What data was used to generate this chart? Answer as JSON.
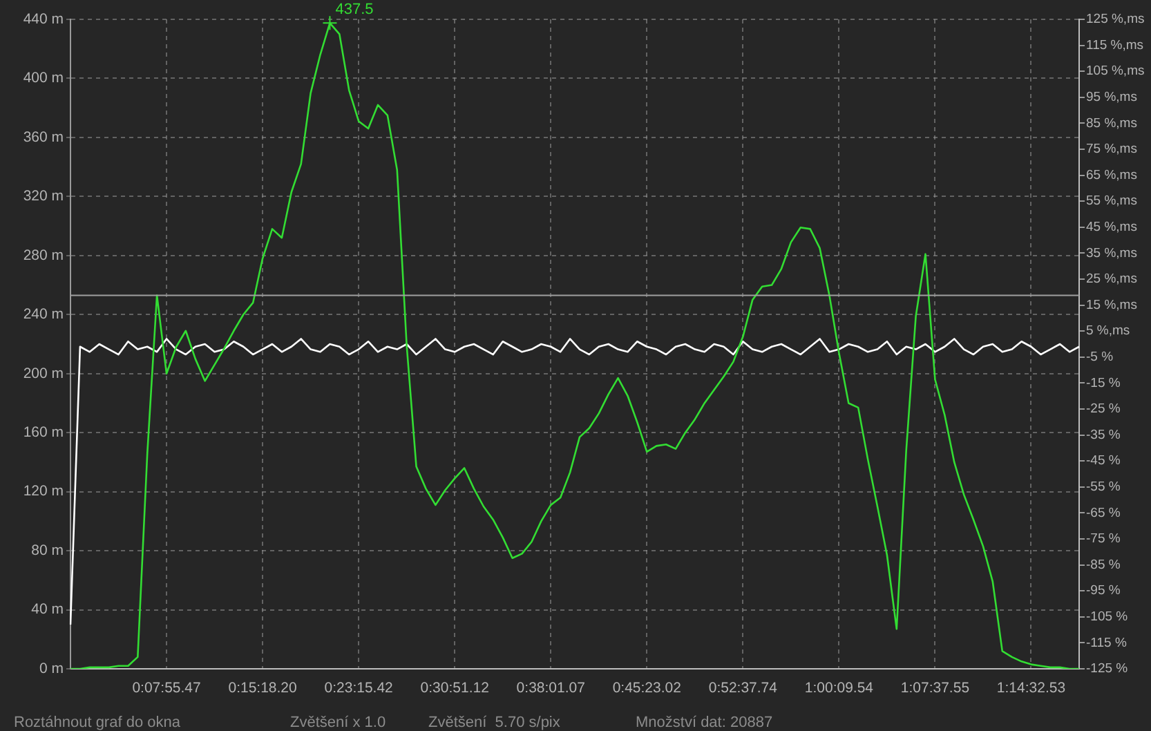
{
  "chart_data": {
    "type": "line",
    "categories": [
      null,
      null,
      null,
      null,
      null,
      null,
      null,
      null,
      null,
      null,
      "0:07:55.47",
      null,
      null,
      null,
      null,
      null,
      null,
      null,
      null,
      null,
      "0:15:18.20",
      null,
      null,
      null,
      null,
      null,
      null,
      null,
      null,
      null,
      "0:23:15.42",
      null,
      null,
      null,
      null,
      null,
      null,
      null,
      null,
      null,
      "0:30:51.12",
      null,
      null,
      null,
      null,
      null,
      null,
      null,
      null,
      null,
      "0:38:01.07",
      null,
      null,
      null,
      null,
      null,
      null,
      null,
      null,
      null,
      "0:45:23.02",
      null,
      null,
      null,
      null,
      null,
      null,
      null,
      null,
      null,
      "0:52:37.74",
      null,
      null,
      null,
      null,
      null,
      null,
      null,
      null,
      null,
      "1:00:09.54",
      null,
      null,
      null,
      null,
      null,
      null,
      null,
      null,
      null,
      "1:07:37.55",
      null,
      null,
      null,
      null,
      null,
      null,
      null,
      null,
      null,
      "1:14:32.53",
      null,
      null,
      null,
      null,
      null
    ],
    "ylim": [
      0,
      440
    ],
    "yticks": [
      {
        "value": 0,
        "label": "0 m"
      },
      {
        "value": 40,
        "label": "40 m"
      },
      {
        "value": 80,
        "label": "80 m"
      },
      {
        "value": 120,
        "label": "120 m"
      },
      {
        "value": 160,
        "label": "160 m"
      },
      {
        "value": 200,
        "label": "200 m"
      },
      {
        "value": 240,
        "label": "240 m"
      },
      {
        "value": 280,
        "label": "280 m"
      },
      {
        "value": 320,
        "label": "320 m"
      },
      {
        "value": 360,
        "label": "360 m"
      },
      {
        "value": 400,
        "label": "400 m"
      },
      {
        "value": 440,
        "label": "440 m"
      }
    ],
    "y2lim": [
      -125,
      125
    ],
    "y2ticks": [
      {
        "value": 125,
        "label": "125 %,ms"
      },
      {
        "value": 115,
        "label": "115 %,ms"
      },
      {
        "value": 105,
        "label": "105 %,ms"
      },
      {
        "value": 95,
        "label": "95 %,ms"
      },
      {
        "value": 85,
        "label": "85 %,ms"
      },
      {
        "value": 75,
        "label": "75 %,ms"
      },
      {
        "value": 65,
        "label": "65 %,ms"
      },
      {
        "value": 55,
        "label": "55 %,ms"
      },
      {
        "value": 45,
        "label": "45 %,ms"
      },
      {
        "value": 35,
        "label": "35 %,ms"
      },
      {
        "value": 25,
        "label": "25 %,ms"
      },
      {
        "value": 15,
        "label": "15 %,ms"
      },
      {
        "value": 5,
        "label": "5 %,ms"
      },
      {
        "value": -5,
        "label": "-5 %"
      },
      {
        "value": -15,
        "label": "-15 %"
      },
      {
        "value": -25,
        "label": "-25 %"
      },
      {
        "value": -35,
        "label": "-35 %"
      },
      {
        "value": -45,
        "label": "-45 %"
      },
      {
        "value": -55,
        "label": "-55 %"
      },
      {
        "value": -65,
        "label": "-65 %"
      },
      {
        "value": -75,
        "label": "-75 %"
      },
      {
        "value": -85,
        "label": "-85 %"
      },
      {
        "value": -95,
        "label": "-95 %"
      },
      {
        "value": -105,
        "label": "-105 %"
      },
      {
        "value": -115,
        "label": "-115 %"
      },
      {
        "value": -125,
        "label": "-125 %"
      }
    ],
    "grid": true,
    "legend": false,
    "marker": "none",
    "line_style": "solid",
    "ref_lines": [
      {
        "axis": "y",
        "value": 253,
        "color": "#a0a0a0"
      }
    ],
    "series": [
      {
        "color": "#33dd33",
        "values": [
          0,
          0,
          1,
          1,
          1,
          2,
          2,
          8,
          146,
          253,
          200,
          218,
          229,
          210,
          195,
          206,
          217,
          229,
          240,
          248,
          278,
          298,
          292,
          323,
          342,
          390,
          416,
          437.5,
          430,
          392,
          371,
          366,
          382,
          375,
          338,
          219,
          137,
          122,
          111,
          121,
          129,
          136,
          122,
          110,
          101,
          89,
          75,
          78,
          86,
          100,
          111,
          116,
          133,
          157,
          163,
          173,
          186,
          197,
          185,
          167,
          147,
          151,
          152,
          149,
          160,
          169,
          180,
          189,
          198,
          208,
          225,
          250,
          259,
          260,
          271,
          289,
          299,
          298,
          285,
          253,
          214,
          180,
          177,
          142,
          110,
          77,
          27,
          148,
          239,
          281,
          196,
          172,
          140,
          118,
          101,
          83,
          59,
          12,
          8,
          5,
          3,
          2,
          1,
          1,
          0,
          0
        ]
      },
      {
        "color": "#ffffff",
        "axis": "y2",
        "values": [
          -108,
          -1,
          -3,
          0,
          -2,
          -4,
          1,
          -2,
          -1,
          -3,
          2,
          -2,
          -4,
          -1,
          0,
          -3,
          -2,
          1,
          -1,
          -4,
          -2,
          0,
          -3,
          -1,
          2,
          -2,
          -3,
          0,
          -1,
          -4,
          -2,
          1,
          -3,
          -1,
          -2,
          0,
          -4,
          -1,
          2,
          -2,
          -3,
          -1,
          0,
          -2,
          -4,
          1,
          -1,
          -3,
          -2,
          0,
          -1,
          -3,
          2,
          -2,
          -4,
          -1,
          0,
          -2,
          -3,
          1,
          -1,
          -2,
          -4,
          -1,
          0,
          -2,
          -3,
          0,
          -1,
          -4,
          1,
          -2,
          -3,
          -1,
          0,
          -2,
          -4,
          -1,
          2,
          -3,
          -2,
          0,
          -1,
          -3,
          -2,
          1,
          -4,
          -1,
          -2,
          0,
          -3,
          -1,
          2,
          -2,
          -4,
          -1,
          0,
          -3,
          -2,
          1,
          -1,
          -4,
          -2,
          0,
          -3,
          -1
        ]
      }
    ],
    "annotations": [
      "437.5",
      "Roztáhnout graf do okna",
      "Zvětšení x 1.0",
      "Zvětšení  5.70 s/pix",
      "Množství dat: 20887"
    ]
  }
}
